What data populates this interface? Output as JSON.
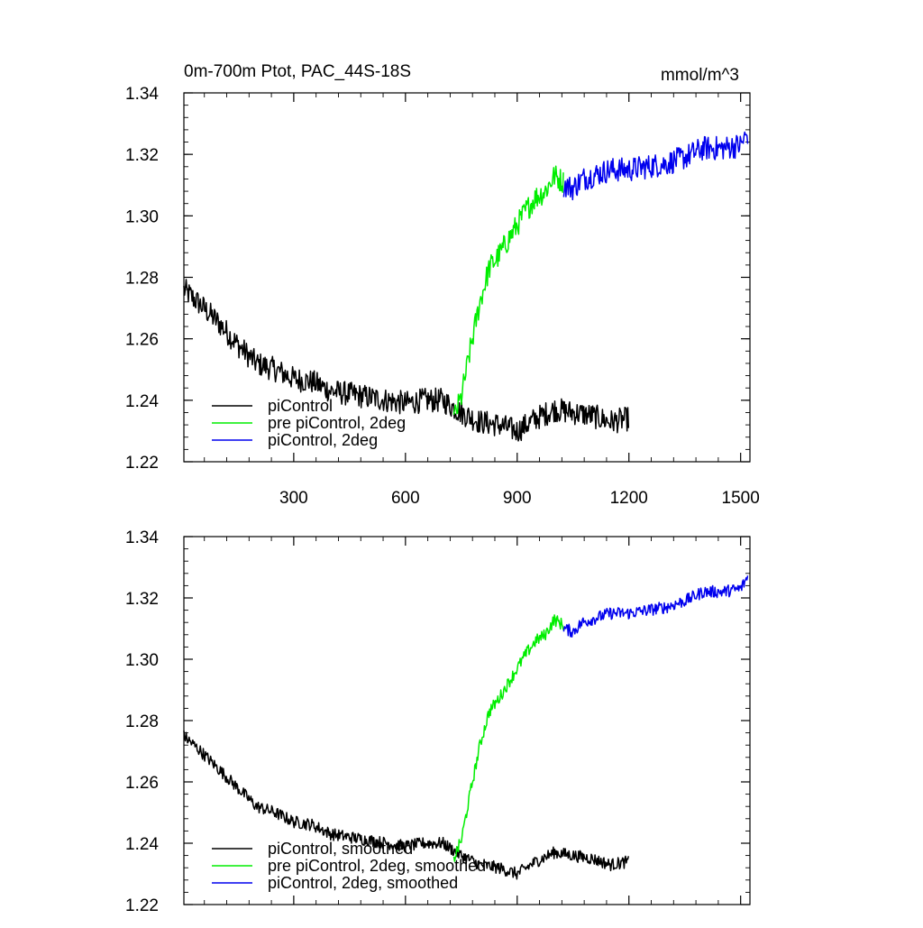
{
  "chart_data": [
    {
      "type": "line",
      "title": "0m-700m Ptot, PAC_44S-18S",
      "units": "mmol/m^3",
      "xlim": [
        5,
        1525
      ],
      "ylim": [
        1.22,
        1.34
      ],
      "x_ticks": [
        300,
        600,
        900,
        1200,
        1500
      ],
      "x_tick_labels": [
        "300",
        "600",
        "900",
        "1200",
        "1500"
      ],
      "y_ticks": [
        1.22,
        1.24,
        1.26,
        1.28,
        1.3,
        1.32,
        1.34
      ],
      "y_tick_labels": [
        "1.22",
        "1.24",
        "1.26",
        "1.28",
        "1.30",
        "1.32",
        "1.34"
      ],
      "legend_position": "bottom-left",
      "grid": false,
      "noise": 0.004,
      "series": [
        {
          "name": "piControl",
          "color": "#000000",
          "x": [
            5,
            50,
            100,
            150,
            200,
            250,
            300,
            350,
            400,
            450,
            500,
            550,
            600,
            650,
            700,
            750,
            800,
            850,
            900,
            950,
            1000,
            1050,
            1100,
            1150,
            1200
          ],
          "y": [
            1.276,
            1.271,
            1.265,
            1.258,
            1.252,
            1.25,
            1.247,
            1.246,
            1.243,
            1.242,
            1.241,
            1.24,
            1.239,
            1.24,
            1.24,
            1.236,
            1.233,
            1.232,
            1.23,
            1.234,
            1.237,
            1.236,
            1.235,
            1.233,
            1.234
          ]
        },
        {
          "name": "pre piControl, 2deg",
          "color": "#00ee00",
          "x": [
            730,
            750,
            775,
            800,
            825,
            850,
            875,
            900,
            925,
            950,
            975,
            1000,
            1025
          ],
          "y": [
            1.234,
            1.241,
            1.257,
            1.272,
            1.283,
            1.287,
            1.292,
            1.297,
            1.302,
            1.306,
            1.308,
            1.313,
            1.311
          ]
        },
        {
          "name": "piControl, 2deg",
          "color": "#0000ee",
          "x": [
            1025,
            1050,
            1075,
            1100,
            1150,
            1200,
            1250,
            1300,
            1350,
            1400,
            1450,
            1500,
            1520
          ],
          "y": [
            1.31,
            1.309,
            1.312,
            1.313,
            1.315,
            1.315,
            1.316,
            1.317,
            1.319,
            1.322,
            1.322,
            1.323,
            1.327
          ]
        }
      ]
    },
    {
      "type": "line",
      "title": "",
      "xlim": [
        5,
        1525
      ],
      "ylim": [
        1.22,
        1.34
      ],
      "x_ticks": [
        300,
        600,
        900,
        1200,
        1500
      ],
      "y_ticks": [
        1.22,
        1.24,
        1.26,
        1.28,
        1.3,
        1.32,
        1.34
      ],
      "y_tick_labels": [
        "1.22",
        "1.24",
        "1.26",
        "1.28",
        "1.30",
        "1.32",
        "1.34"
      ],
      "legend_position": "bottom-left",
      "grid": false,
      "noise": 0.002,
      "series": [
        {
          "name": "piControl, smoothed",
          "color": "#000000",
          "x": [
            5,
            50,
            100,
            150,
            200,
            250,
            300,
            350,
            400,
            450,
            500,
            550,
            600,
            650,
            700,
            750,
            800,
            850,
            900,
            950,
            1000,
            1050,
            1100,
            1150,
            1200
          ],
          "y": [
            1.275,
            1.27,
            1.264,
            1.258,
            1.252,
            1.25,
            1.247,
            1.246,
            1.243,
            1.242,
            1.241,
            1.24,
            1.239,
            1.24,
            1.24,
            1.236,
            1.233,
            1.232,
            1.23,
            1.234,
            1.237,
            1.236,
            1.235,
            1.233,
            1.234
          ]
        },
        {
          "name": "pre piControl, 2deg, smoothed",
          "color": "#00ee00",
          "x": [
            730,
            750,
            775,
            800,
            825,
            850,
            875,
            900,
            925,
            950,
            975,
            1000,
            1025
          ],
          "y": [
            1.235,
            1.241,
            1.257,
            1.272,
            1.283,
            1.287,
            1.292,
            1.297,
            1.302,
            1.306,
            1.308,
            1.313,
            1.311
          ]
        },
        {
          "name": "piControl, 2deg, smoothed",
          "color": "#0000ee",
          "x": [
            1025,
            1050,
            1075,
            1100,
            1150,
            1200,
            1250,
            1300,
            1350,
            1400,
            1450,
            1500,
            1520
          ],
          "y": [
            1.31,
            1.309,
            1.312,
            1.313,
            1.315,
            1.315,
            1.316,
            1.317,
            1.319,
            1.322,
            1.322,
            1.323,
            1.327
          ]
        }
      ]
    }
  ]
}
